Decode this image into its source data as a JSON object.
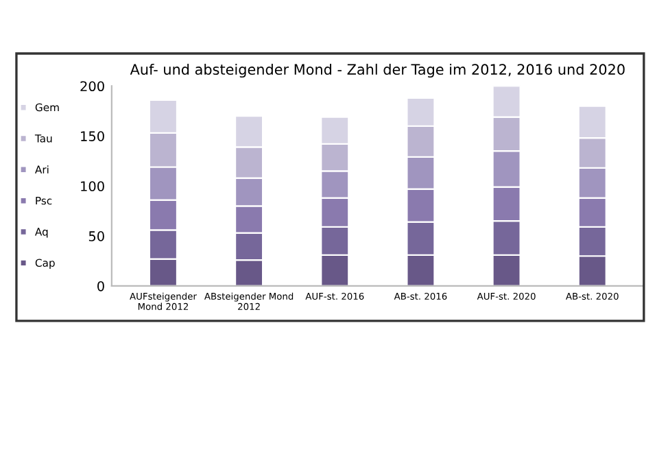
{
  "chart_data": {
    "type": "bar",
    "stacked": true,
    "title": "Auf- und absteigender Mond - Zahl der Tage im 2012, 2016 und 2020",
    "categories": [
      "AUFsteigender\nMond 2012",
      "ABsteigender Mond\n2012",
      "AUF-st. 2016",
      "AB-st. 2016",
      "AUF-st. 2020",
      "AB-st. 2020"
    ],
    "series": [
      {
        "name": "Cap",
        "color": "#685888",
        "values": [
          27,
          26,
          31,
          31,
          31,
          30
        ]
      },
      {
        "name": "Aq",
        "color": "#76679a",
        "values": [
          29,
          27,
          28,
          33,
          34,
          29
        ]
      },
      {
        "name": "Psc",
        "color": "#8a7aae",
        "values": [
          30,
          27,
          29,
          33,
          34,
          29
        ]
      },
      {
        "name": "Ari",
        "color": "#a095bf",
        "values": [
          33,
          28,
          27,
          32,
          36,
          30
        ]
      },
      {
        "name": "Tau",
        "color": "#bbb4d0",
        "values": [
          34,
          31,
          27,
          31,
          34,
          30
        ]
      },
      {
        "name": "Gem",
        "color": "#d6d3e4",
        "values": [
          33,
          31,
          27,
          28,
          31,
          32
        ]
      }
    ],
    "ylim": [
      0,
      200
    ],
    "yticks": [
      0,
      50,
      100,
      150,
      200
    ],
    "grid": false,
    "legend": "left"
  }
}
